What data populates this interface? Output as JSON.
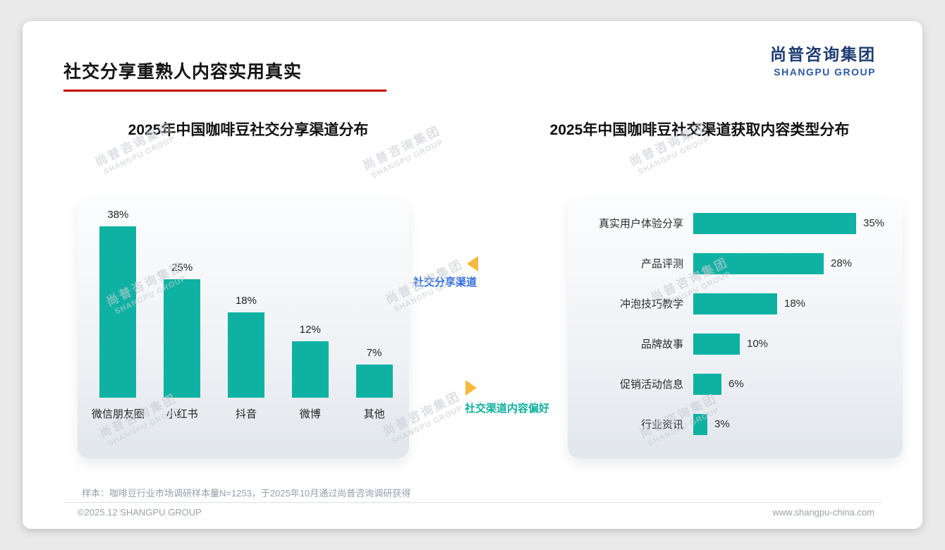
{
  "slide": {
    "title": "社交分享重熟人内容实用真实",
    "sample_note": "样本：咖啡豆行业市场调研样本量N=1253，于2025年10月通过尚普咨询调研获得",
    "footer_left": "©2025.12 SHANGPU GROUP",
    "footer_right": "www.shangpu-china.com"
  },
  "logo": {
    "cn": "尚普咨询集团",
    "en": "SHANGPU GROUP"
  },
  "watermark": {
    "cn": "尚普咨询集团",
    "en": "SHANGPU GROUP"
  },
  "annotations": {
    "sharing_channels_label": "社交分享渠道",
    "content_preference_label": "社交渠道内容偏好"
  },
  "colors": {
    "teal": "#0FB2A2",
    "accent_red": "#C00000",
    "annotation_blue": "#2E6BE0",
    "annotation_teal": "#0EAF9F",
    "triangle_yellow": "#F6B83D",
    "logo_blue": "#1E3C72"
  },
  "chart_data": [
    {
      "type": "bar",
      "orientation": "vertical",
      "title": "2025年中国咖啡豆社交分享渠道分布",
      "categories": [
        "微信朋友圈",
        "小红书",
        "抖音",
        "微博",
        "其他"
      ],
      "values": [
        38,
        25,
        18,
        12,
        7
      ],
      "unit": "%",
      "ylim": [
        0,
        40
      ],
      "grid": false,
      "legend": "none",
      "bar_color": "#0FB2A2"
    },
    {
      "type": "bar",
      "orientation": "horizontal",
      "title": "2025年中国咖啡豆社交渠道获取内容类型分布",
      "categories": [
        "真实用户体验分享",
        "产品评测",
        "冲泡技巧教学",
        "品牌故事",
        "促销活动信息",
        "行业资讯"
      ],
      "values": [
        35,
        28,
        18,
        10,
        6,
        3
      ],
      "unit": "%",
      "xlim": [
        0,
        40
      ],
      "grid": false,
      "legend": "none",
      "bar_color": "#0FB2A2"
    }
  ]
}
